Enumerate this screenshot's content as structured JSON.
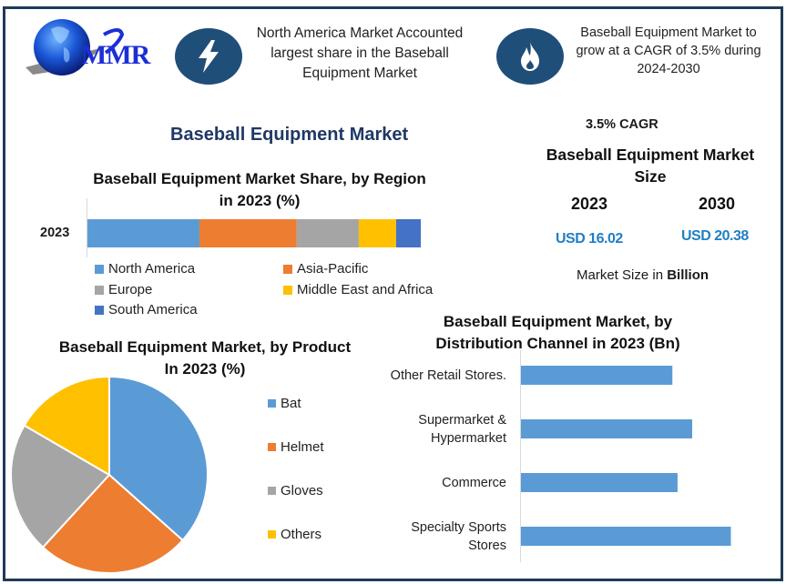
{
  "logo": {
    "text": "MMR",
    "icon": "globe-icon"
  },
  "header": {
    "card1": {
      "icon": "lightning-bolt-icon",
      "text": "North America Market Accounted largest share in the Baseball Equipment Market",
      "lines": [
        "North America Market Accounted",
        "largest share in the Baseball",
        "Equipment Market"
      ]
    },
    "card2": {
      "icon": "flame-icon",
      "text": "Baseball Equipment Market to grow at a CAGR of 3.5% during 2024-2030",
      "lines": [
        "Baseball Equipment Market to",
        "grow at a CAGR of 3.5% during",
        "2024-2030"
      ]
    }
  },
  "main_title": "Baseball Equipment Market",
  "kpi": {
    "cagr": "3.5% CAGR",
    "title_lines": [
      "Baseball Equipment Market",
      "Size"
    ],
    "year1": "2023",
    "year2": "2030",
    "value1": "USD 16.02",
    "value2": "USD 20.38",
    "unit_prefix": "Market Size in ",
    "unit_bold": "Billion"
  },
  "colors": {
    "north_america": "#5b9bd5",
    "asia_pacific": "#ed7d31",
    "europe": "#a5a5a5",
    "mea": "#ffc000",
    "south_america": "#4472c4",
    "frame": "#1f3b57",
    "icon_bg": "#1f4e79",
    "title": "#1f3864",
    "kpi_value": "#1f7fc4"
  },
  "chart_data": [
    {
      "type": "bar",
      "orientation": "horizontal-stacked",
      "title_lines": [
        "Baseball Equipment Market Share, by Region",
        "in 2023 (%)"
      ],
      "categories": [
        "2023"
      ],
      "series": [
        {
          "name": "North America",
          "values": [
            33.6
          ],
          "color": "#5b9bd5"
        },
        {
          "name": "Asia-Pacific",
          "values": [
            29.2
          ],
          "color": "#ed7d31"
        },
        {
          "name": "Europe",
          "values": [
            18.6
          ],
          "color": "#a5a5a5"
        },
        {
          "name": "Middle East and Africa",
          "values": [
            11.2
          ],
          "color": "#ffc000"
        },
        {
          "name": "South America",
          "values": [
            7.4
          ],
          "color": "#4472c4"
        }
      ],
      "xlim": [
        0,
        100
      ],
      "legend": "bottom",
      "grid": false
    },
    {
      "type": "pie",
      "title_lines": [
        "Baseball Equipment Market, by Product",
        "In 2023 (%)"
      ],
      "slices": [
        {
          "label": "Bat",
          "value": 36.6,
          "color": "#5b9bd5"
        },
        {
          "label": "Helmet",
          "value": 25.2,
          "color": "#ed7d31"
        },
        {
          "label": "Gloves",
          "value": 21.6,
          "color": "#a5a5a5"
        },
        {
          "label": "Others",
          "value": 16.6,
          "color": "#ffc000"
        }
      ],
      "legend": "right"
    },
    {
      "type": "bar",
      "orientation": "horizontal",
      "title_lines": [
        "Baseball Equipment Market, by",
        "Distribution Channel in 2023 (Bn)"
      ],
      "categories": [
        [
          "Other Retail Stores."
        ],
        [
          "Supermarket &",
          "Hypermarket"
        ],
        [
          "Commerce"
        ],
        [
          "Specialty Sports",
          "Stores"
        ]
      ],
      "values": [
        3.52,
        3.98,
        3.64,
        4.88
      ],
      "xlim": [
        0,
        6.5
      ],
      "color": "#5b9bd5",
      "grid": false
    }
  ]
}
